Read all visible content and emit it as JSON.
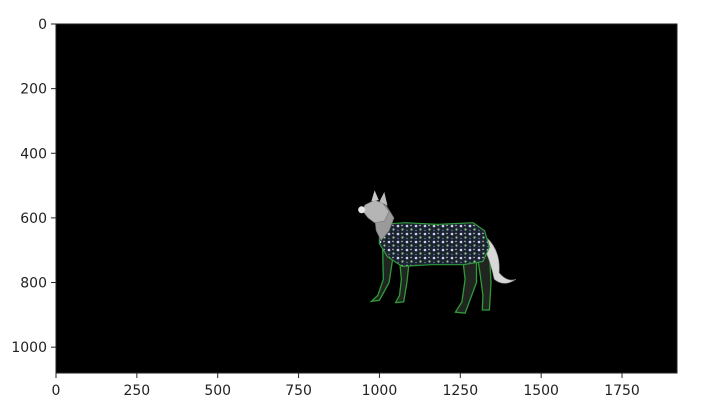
{
  "chart_data": {
    "type": "image",
    "title": "",
    "xlabel": "",
    "ylabel": "",
    "xlim": [
      0,
      1920
    ],
    "ylim": [
      1080,
      0
    ],
    "xticks": [
      {
        "value": 0,
        "label": "0"
      },
      {
        "value": 250,
        "label": "250"
      },
      {
        "value": 500,
        "label": "500"
      },
      {
        "value": 750,
        "label": "750"
      },
      {
        "value": 1000,
        "label": "1000"
      },
      {
        "value": 1250,
        "label": "1250"
      },
      {
        "value": 1500,
        "label": "1500"
      },
      {
        "value": 1750,
        "label": "1750"
      }
    ],
    "yticks": [
      {
        "value": 0,
        "label": "0"
      },
      {
        "value": 200,
        "label": "200"
      },
      {
        "value": 400,
        "label": "400"
      },
      {
        "value": 600,
        "label": "600"
      },
      {
        "value": 800,
        "label": "800"
      },
      {
        "value": 1000,
        "label": "1000"
      }
    ],
    "grid": false,
    "background_color": "#000000",
    "image_content": "wolf",
    "subject_extent": {
      "x": [
        945,
        1420
      ],
      "y": [
        515,
        900
      ]
    }
  }
}
